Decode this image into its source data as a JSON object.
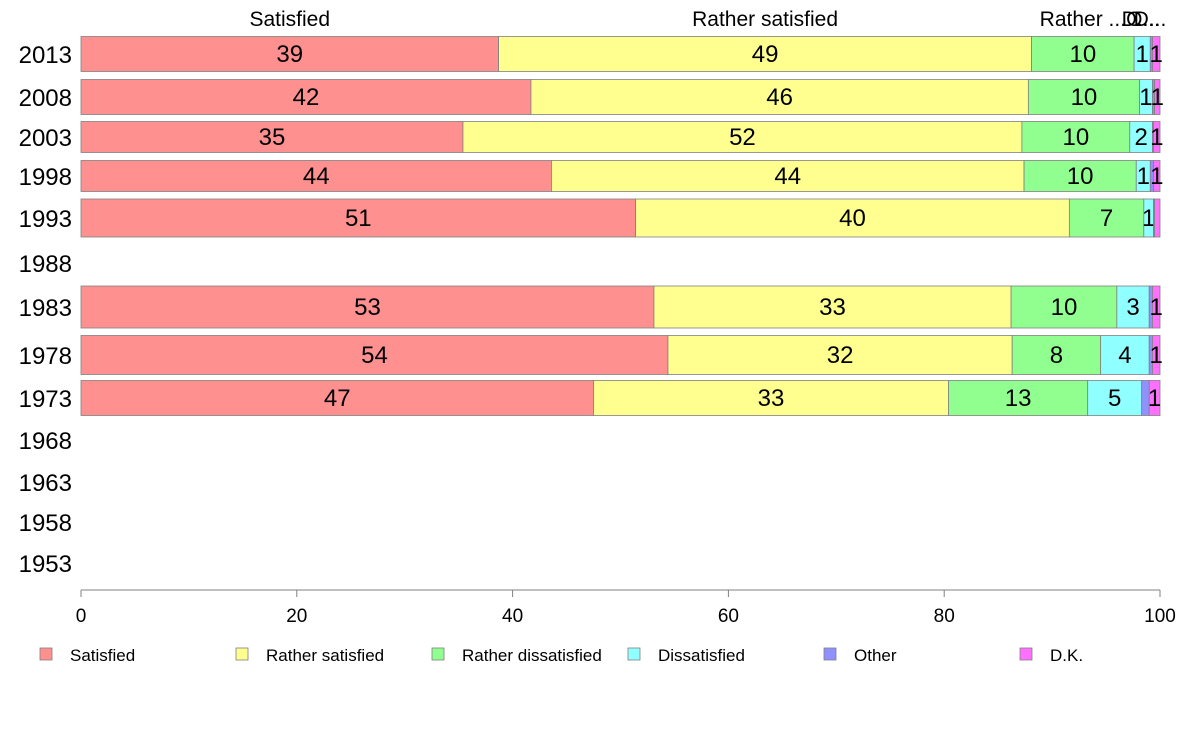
{
  "chart_data": {
    "type": "bar",
    "orientation": "horizontal",
    "stacked": true,
    "title": "",
    "xlabel": "",
    "ylabel": "",
    "xlim": [
      0,
      100
    ],
    "x_ticks": [
      0,
      20,
      40,
      60,
      80,
      100
    ],
    "x_tick_labels": [
      "0",
      "20",
      "40",
      "60",
      "80",
      "100"
    ],
    "grid": false,
    "legend_position": "bottom",
    "categories": [
      "2013",
      "2008",
      "2003",
      "1998",
      "1993",
      "1988",
      "1983",
      "1978",
      "1973",
      "1968",
      "1963",
      "1958",
      "1953"
    ],
    "top_labels": [
      "Satisfied",
      "Rather satisfied",
      "Rather ...",
      "D...",
      "O...",
      "D..."
    ],
    "series": [
      {
        "name": "Satisfied",
        "color": "#ff9090",
        "values": [
          38.7,
          41.7,
          35.4,
          43.6,
          51.4,
          null,
          53.1,
          54.4,
          47.5,
          null,
          null,
          null,
          null
        ],
        "labels": [
          "39",
          "42",
          "35",
          "44",
          "51",
          "",
          "53",
          "54",
          "47",
          "",
          "",
          "",
          ""
        ]
      },
      {
        "name": "Rather satisfied",
        "color": "#ffff90",
        "values": [
          49.4,
          46.1,
          51.8,
          43.8,
          40.2,
          null,
          33.1,
          31.9,
          32.9,
          null,
          null,
          null,
          null
        ],
        "labels": [
          "49",
          "46",
          "52",
          "44",
          "40",
          "",
          "33",
          "32",
          "33",
          "",
          "",
          "",
          ""
        ]
      },
      {
        "name": "Rather dissatisfied",
        "color": "#90ff90",
        "values": [
          9.5,
          10.3,
          10.0,
          10.4,
          6.9,
          null,
          9.8,
          8.2,
          12.9,
          null,
          null,
          null,
          null
        ],
        "labels": [
          "10",
          "10",
          "10",
          "10",
          "7",
          "",
          "10",
          "8",
          "13",
          "",
          "",
          "",
          ""
        ]
      },
      {
        "name": "Dissatisfied",
        "color": "#90ffff",
        "values": [
          1.5,
          1.2,
          2.1,
          1.3,
          0.9,
          null,
          3.0,
          4.5,
          5.0,
          null,
          null,
          null,
          null
        ],
        "labels": [
          "1",
          "1",
          "2",
          "1",
          "1",
          "",
          "3",
          "4",
          "5",
          "",
          "",
          "",
          ""
        ]
      },
      {
        "name": "Other",
        "color": "#9090ff",
        "values": [
          0.2,
          0.2,
          0.1,
          0.3,
          0.1,
          null,
          0.3,
          0.3,
          0.7,
          null,
          null,
          null,
          null
        ],
        "labels": [
          "",
          "",
          "",
          "",
          "",
          "",
          "",
          "",
          "",
          "",
          "",
          "",
          ""
        ]
      },
      {
        "name": "D.K.",
        "color": "#ff70ff",
        "values": [
          0.7,
          0.5,
          0.6,
          0.6,
          0.5,
          null,
          0.7,
          0.7,
          1.0,
          null,
          null,
          null,
          null
        ],
        "labels": [
          "1",
          "1",
          "1",
          "1",
          "",
          "",
          "1",
          "1",
          "1",
          "",
          "",
          "",
          ""
        ]
      }
    ]
  }
}
